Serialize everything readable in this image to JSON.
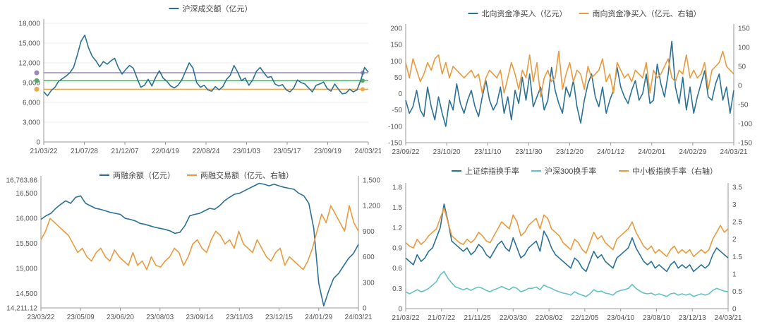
{
  "chart_data": [
    {
      "type": "line",
      "legend": [
        {
          "name": "沪深成交额（亿元）",
          "color": "#2a7196"
        }
      ],
      "x_ticks": [
        "21/03/22",
        "21/07/28",
        "21/12/07",
        "22/04/19",
        "22/08/24",
        "23/01/03",
        "23/05/17",
        "23/09/19",
        "24/03/21"
      ],
      "y_ticks": [
        "0",
        "3,000",
        "6,000",
        "9,000",
        "12,000",
        "15,000",
        "18,000"
      ],
      "ylim": [
        0,
        18000
      ],
      "series": [
        {
          "color": "#2a7196",
          "values": [
            7600,
            7000,
            7800,
            8300,
            9200,
            9600,
            10000,
            10500,
            11300,
            13200,
            15300,
            16200,
            14300,
            13000,
            12300,
            11400,
            12200,
            11800,
            12300,
            12700,
            11300,
            10300,
            11000,
            11600,
            11200,
            9700,
            8300,
            8600,
            9500,
            8500,
            9800,
            10800,
            9700,
            9200,
            8500,
            8200,
            8600,
            9400,
            10700,
            12000,
            11200,
            9000,
            8300,
            8600,
            7900,
            7700,
            8400,
            7900,
            8400,
            9500,
            10100,
            11600,
            10600,
            9300,
            9700,
            8600,
            9400,
            10700,
            11300,
            10500,
            9800,
            9900,
            8800,
            8500,
            8700,
            7900,
            7600,
            8200,
            9400,
            9000,
            8800,
            8200,
            7600,
            8600,
            8800,
            9100,
            8100,
            7700,
            8800,
            8000,
            7300,
            7400,
            8000,
            7600,
            7900,
            9400,
            11300,
            10600
          ]
        }
      ],
      "reference_lines": [
        {
          "value": 10500,
          "color": "#9b87b8"
        },
        {
          "value": 9300,
          "color": "#5aa86e"
        },
        {
          "value": 8000,
          "color": "#f0a84e"
        }
      ]
    },
    {
      "type": "line",
      "legend": [
        {
          "name": "北向资金净买入（亿元）",
          "color": "#2a7196"
        },
        {
          "name": "南向资金净买入（亿元、右轴）",
          "color": "#ea9a3e"
        }
      ],
      "x_ticks": [
        "23/09/22",
        "23/10/20",
        "23/11/10",
        "23/11/30",
        "23/12/20",
        "24/01/12",
        "24/02/01",
        "24/02/29",
        "24/03/21"
      ],
      "y_ticks": [
        "-150",
        "-100",
        "-50",
        "0",
        "50",
        "100",
        "150",
        "200"
      ],
      "ylim": [
        -150,
        200
      ],
      "y2_ticks": [
        "-150",
        "-100",
        "-50",
        "0",
        "50",
        "100",
        "150"
      ],
      "y2lim": [
        -150,
        150
      ],
      "series": [
        {
          "name": "北向资金净买入（亿元）",
          "axis": "left",
          "color": "#2a7196",
          "values": [
            -20,
            -60,
            -40,
            10,
            -50,
            -70,
            20,
            -40,
            -80,
            -10,
            -60,
            -100,
            -20,
            -50,
            30,
            -30,
            -60,
            -20,
            10,
            -40,
            -70,
            -10,
            40,
            -20,
            -50,
            -30,
            20,
            -60,
            -10,
            -80,
            10,
            -30,
            50,
            -20,
            60,
            -40,
            -10,
            20,
            -50,
            -20,
            80,
            10,
            -30,
            -60,
            20,
            -10,
            40,
            -40,
            -90,
            -20,
            30,
            60,
            -10,
            -40,
            20,
            -60,
            -20,
            10,
            80,
            20,
            -10,
            -30,
            10,
            40,
            -20,
            0,
            60,
            -30,
            -20,
            90,
            30,
            -10,
            60,
            160,
            20,
            -30,
            50,
            -50,
            20,
            -60,
            -10,
            30,
            70,
            -10,
            -20,
            30,
            60,
            -20,
            20,
            -60,
            10
          ]
        },
        {
          "name": "南向资金净买入（亿元、右轴）",
          "axis": "right",
          "color": "#ea9a3e",
          "values": [
            60,
            20,
            70,
            40,
            10,
            30,
            60,
            40,
            70,
            80,
            30,
            60,
            20,
            50,
            40,
            30,
            20,
            30,
            40,
            20,
            30,
            -20,
            20,
            40,
            30,
            20,
            40,
            -20,
            20,
            60,
            30,
            -10,
            40,
            20,
            80,
            10,
            60,
            -30,
            20,
            40,
            10,
            20,
            90,
            -10,
            30,
            60,
            10,
            40,
            30,
            -10,
            50,
            20,
            30,
            40,
            70,
            10,
            30,
            -20,
            60,
            40,
            20,
            30,
            10,
            40,
            30,
            20,
            60,
            -20,
            40,
            20,
            30,
            50,
            70,
            20,
            10,
            40,
            30,
            80,
            20,
            40,
            20,
            30,
            60,
            -10,
            40,
            50,
            60,
            90,
            50,
            40,
            30
          ]
        }
      ]
    },
    {
      "type": "line",
      "legend": [
        {
          "name": "两融余额（亿元）",
          "color": "#2a7196"
        },
        {
          "name": "两融交易额（亿元、右轴）",
          "color": "#ea9a3e"
        }
      ],
      "x_ticks": [
        "23/03/22",
        "23/05/09",
        "23/06/20",
        "23/08/03",
        "23/09/14",
        "23/11/03",
        "23/12/15",
        "24/01/29",
        "24/03/21"
      ],
      "y_ticks": [
        "14,211.12",
        "14,500",
        "15,000",
        "15,500",
        "16,000",
        "16,500",
        "16,763.86"
      ],
      "ylim": [
        14211.12,
        16763.86
      ],
      "y2_ticks": [
        "0",
        "300",
        "600",
        "900",
        "1,200",
        "1,500"
      ],
      "y2lim": [
        0,
        1500
      ],
      "series": [
        {
          "name": "两融余额（亿元）",
          "axis": "left",
          "color": "#2a7196",
          "values": [
            15980,
            16050,
            16100,
            16200,
            16280,
            16350,
            16300,
            16420,
            16450,
            16300,
            16250,
            16200,
            16180,
            16150,
            16120,
            16100,
            16080,
            16000,
            15980,
            15950,
            15900,
            15880,
            15850,
            15820,
            15800,
            15780,
            15750,
            15700,
            15720,
            15850,
            16050,
            16080,
            16100,
            16150,
            16200,
            16180,
            16250,
            16350,
            16420,
            16480,
            16500,
            16550,
            16600,
            16650,
            16700,
            16680,
            16650,
            16680,
            16650,
            16620,
            16600,
            16580,
            16500,
            16450,
            16300,
            15800,
            14700,
            14250,
            14550,
            14800,
            14900,
            15050,
            15200,
            15300,
            15480
          ]
        },
        {
          "name": "两融交易额（亿元、右轴）",
          "axis": "right",
          "color": "#ea9a3e",
          "values": [
            800,
            900,
            1050,
            1000,
            950,
            900,
            850,
            750,
            650,
            700,
            600,
            550,
            650,
            700,
            600,
            550,
            680,
            600,
            550,
            500,
            650,
            500,
            550,
            450,
            600,
            500,
            480,
            550,
            600,
            700,
            650,
            500,
            600,
            750,
            800,
            700,
            650,
            800,
            900,
            850,
            750,
            800,
            700,
            900,
            750,
            700,
            650,
            800,
            700,
            600,
            550,
            650,
            700,
            500,
            600,
            550,
            500,
            450,
            550,
            700,
            900,
            1100,
            1000,
            1200,
            1100,
            1000,
            900,
            1200,
            1000,
            900
          ]
        }
      ]
    },
    {
      "type": "line",
      "legend": [
        {
          "name": "上证综指换手率",
          "color": "#2a7196"
        },
        {
          "name": "沪深300换手率",
          "color": "#62c1c4"
        },
        {
          "name": "中小板指换手率（右轴）",
          "color": "#ea9a3e"
        }
      ],
      "x_ticks": [
        "21/03/22",
        "21/07/22",
        "21/11/25",
        "22/03/30",
        "22/08/02",
        "22/12/05",
        "23/04/10",
        "23/08/10",
        "23/12/13",
        "24/03/21"
      ],
      "y_ticks": [
        "0",
        "0.3",
        "0.6",
        "0.9",
        "1.2",
        "1.5",
        "1.8"
      ],
      "ylim": [
        0,
        1.8
      ],
      "y2_ticks": [
        "0",
        "0.5",
        "1",
        "1.5",
        "2",
        "2.5",
        "3",
        "3.5"
      ],
      "y2lim": [
        0,
        3.5
      ],
      "series": [
        {
          "name": "上证综指换手率",
          "axis": "left",
          "color": "#2a7196",
          "values": [
            0.75,
            0.7,
            0.65,
            0.8,
            0.7,
            0.75,
            0.85,
            0.9,
            1.05,
            1.2,
            1.55,
            1.3,
            1.0,
            0.95,
            0.9,
            0.85,
            0.9,
            0.8,
            0.85,
            0.95,
            0.9,
            0.8,
            0.75,
            0.85,
            0.95,
            1.0,
            0.9,
            0.85,
            1.05,
            0.9,
            0.75,
            0.8,
            0.9,
            0.95,
            1.0,
            0.85,
            1.15,
            1.05,
            0.9,
            0.8,
            0.75,
            0.7,
            0.65,
            0.6,
            0.75,
            0.7,
            0.6,
            0.55,
            0.7,
            0.85,
            0.75,
            0.8,
            0.7,
            0.65,
            0.6,
            0.75,
            0.8,
            0.85,
            0.9,
            1.05,
            0.9,
            0.8,
            0.7,
            0.65,
            0.7,
            0.6,
            0.65,
            0.6,
            0.55,
            0.65,
            0.7,
            0.6,
            0.65,
            0.6,
            0.65,
            0.55,
            0.6,
            0.65,
            0.6,
            0.65,
            0.8,
            0.9,
            0.85,
            0.8,
            0.75
          ]
        },
        {
          "name": "沪深300换手率",
          "axis": "left",
          "color": "#62c1c4",
          "values": [
            0.25,
            0.22,
            0.25,
            0.28,
            0.25,
            0.27,
            0.3,
            0.35,
            0.4,
            0.5,
            0.55,
            0.45,
            0.38,
            0.32,
            0.3,
            0.28,
            0.3,
            0.27,
            0.3,
            0.32,
            0.3,
            0.27,
            0.25,
            0.28,
            0.3,
            0.33,
            0.3,
            0.28,
            0.32,
            0.3,
            0.25,
            0.27,
            0.3,
            0.3,
            0.32,
            0.28,
            0.35,
            0.32,
            0.3,
            0.27,
            0.25,
            0.23,
            0.22,
            0.2,
            0.25,
            0.22,
            0.2,
            0.18,
            0.22,
            0.28,
            0.25,
            0.26,
            0.23,
            0.22,
            0.2,
            0.25,
            0.27,
            0.28,
            0.3,
            0.36,
            0.3,
            0.26,
            0.23,
            0.22,
            0.23,
            0.2,
            0.22,
            0.2,
            0.18,
            0.22,
            0.23,
            0.2,
            0.22,
            0.2,
            0.22,
            0.18,
            0.2,
            0.22,
            0.2,
            0.22,
            0.27,
            0.3,
            0.28,
            0.26,
            0.25
          ]
        },
        {
          "name": "中小板指换手率（右轴）",
          "axis": "right",
          "color": "#ea9a3e",
          "values": [
            1.9,
            1.8,
            1.75,
            2.0,
            1.85,
            1.95,
            2.1,
            2.2,
            2.3,
            2.6,
            2.9,
            2.5,
            2.1,
            2.0,
            1.9,
            1.85,
            2.0,
            1.9,
            2.0,
            2.2,
            2.1,
            1.95,
            1.9,
            2.1,
            2.3,
            2.5,
            2.4,
            2.3,
            2.7,
            2.5,
            2.1,
            2.2,
            2.4,
            2.5,
            2.6,
            2.3,
            2.7,
            2.6,
            2.3,
            2.2,
            2.1,
            1.9,
            1.8,
            1.7,
            2.0,
            1.9,
            1.7,
            1.6,
            1.9,
            2.2,
            2.0,
            2.1,
            1.9,
            1.8,
            1.7,
            2.0,
            2.1,
            2.2,
            2.3,
            2.5,
            2.2,
            2.0,
            1.8,
            1.7,
            1.8,
            1.6,
            1.7,
            1.6,
            1.5,
            1.7,
            1.8,
            1.6,
            1.7,
            1.6,
            1.7,
            1.5,
            1.6,
            1.7,
            1.6,
            1.7,
            2.0,
            2.2,
            2.4,
            2.2,
            2.3
          ]
        }
      ]
    }
  ]
}
